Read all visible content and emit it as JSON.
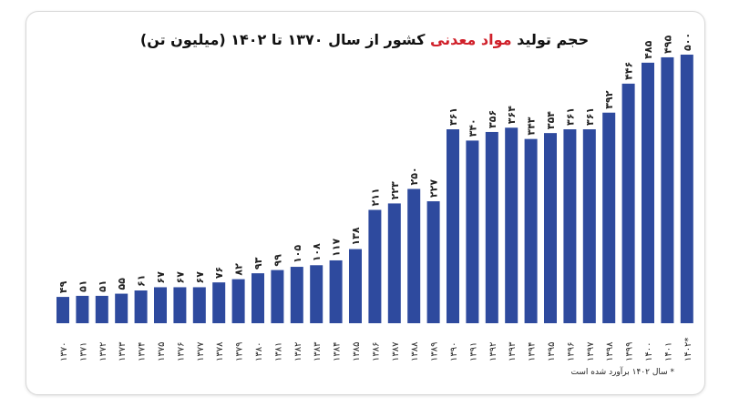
{
  "chart_data": {
    "type": "bar",
    "title_prefix": "حجم تولید",
    "title_highlight": "مواد معدنی",
    "title_suffix": "کشور از سال ۱۳۷۰ تا ۱۴۰۲ (میلیون تن)",
    "categories": [
      "۱۳۷۰",
      "۱۳۷۱",
      "۱۳۷۲",
      "۱۳۷۳",
      "۱۳۷۴",
      "۱۳۷۵",
      "۱۳۷۶",
      "۱۳۷۷",
      "۱۳۷۸",
      "۱۳۷۹",
      "۱۳۸۰",
      "۱۳۸۱",
      "۱۳۸۲",
      "۱۳۸۳",
      "۱۳۸۴",
      "۱۳۸۵",
      "۱۳۸۶",
      "۱۳۸۷",
      "۱۳۸۸",
      "۱۳۸۹",
      "۱۳۹۰",
      "۱۳۹۱",
      "۱۳۹۲",
      "۱۳۹۳",
      "۱۳۹۴",
      "۱۳۹۵",
      "۱۳۹۶",
      "۱۳۹۷",
      "۱۳۹۸",
      "۱۳۹۹",
      "۱۴۰۰",
      "۱۴۰۱",
      "۱۴۰۲*"
    ],
    "values": [
      49,
      51,
      51,
      55,
      61,
      67,
      67,
      67,
      76,
      82,
      93,
      99,
      105,
      108,
      117,
      138,
      211,
      223,
      250,
      227,
      361,
      340,
      356,
      364,
      343,
      354,
      361,
      361,
      392,
      446,
      485,
      495,
      500
    ],
    "data_labels": [
      "۴۹",
      "۵۱",
      "۵۱",
      "۵۵",
      "۶۱",
      "۶۷",
      "۶۷",
      "۶۷",
      "۷۶",
      "۸۲",
      "۹۳",
      "۹۹",
      "۱۰۵",
      "۱۰۸",
      "۱۱۷",
      "۱۳۸",
      "۲۱۱",
      "۲۲۳",
      "۲۵۰",
      "۲۲۷",
      "۳۶۱",
      "۳۴۰",
      "۳۵۶",
      "۳۶۴",
      "۳۴۳",
      "۳۵۴",
      "۳۶۱",
      "۳۶۱",
      "۳۹۲",
      "۴۴۶",
      "۴۸۵",
      "۴۹۵",
      "۵۰۰"
    ],
    "ylim": [
      0,
      500
    ],
    "grid": false,
    "bar_color": "#2e4a9e",
    "highlight_color": "#d0202a",
    "footnote": "* سال ۱۴۰۲ برآورد شده است"
  }
}
